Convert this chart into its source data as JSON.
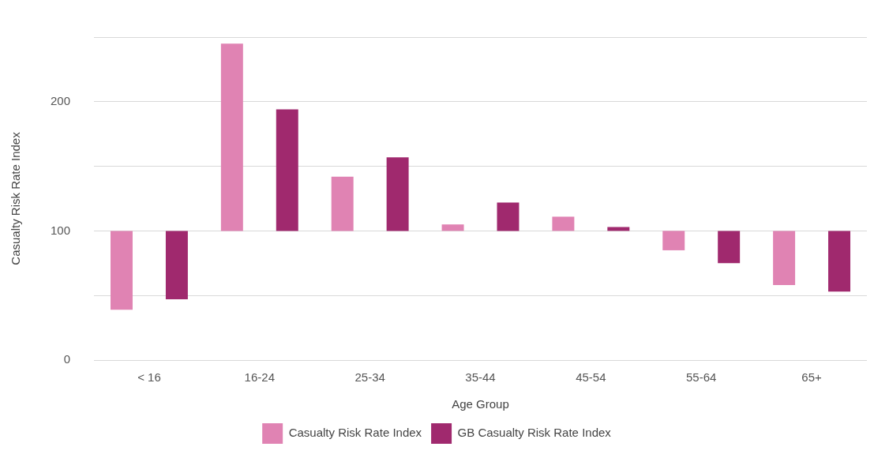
{
  "chart_data": {
    "type": "bar",
    "xlabel": "Age Group",
    "ylabel": "Casualty Risk Rate Index",
    "categories": [
      "< 16",
      "16-24",
      "25-34",
      "35-44",
      "45-54",
      "55-64",
      "65+"
    ],
    "series": [
      {
        "name": "Casualty Risk Rate Index",
        "color": "#e083b3",
        "values": [
          -61,
          145,
          42,
          5,
          11,
          -15,
          -42
        ],
        "base": [
          100,
          100,
          100,
          100,
          100,
          100,
          100
        ]
      },
      {
        "name": "GB Casualty Risk Rate Index",
        "color": "#a0296e",
        "values": [
          -53,
          94,
          57,
          22,
          3,
          -25,
          -47
        ],
        "base": [
          100,
          100,
          100,
          100,
          100,
          100,
          100
        ]
      }
    ],
    "ylim": [
      0,
      250
    ],
    "yticks": [
      0,
      {
        "value": 50,
        "label": null
      },
      100,
      {
        "value": 150,
        "label": null
      },
      200,
      {
        "value": 250,
        "label": null
      }
    ],
    "grid": "y",
    "legend": "bottom"
  }
}
